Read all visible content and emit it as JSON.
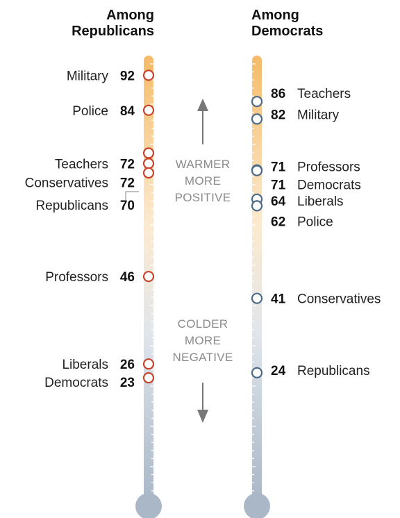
{
  "chart_data": {
    "type": "scatter",
    "subtype": "feeling-thermometer",
    "scale": [
      0,
      100
    ],
    "grid": false,
    "colors": {
      "warm": "#f4b860",
      "cool": "#a9b7c7",
      "republican_marker": "#c8432b",
      "democrat_marker": "#4a6a87",
      "arrow": "#777777"
    },
    "annotations": {
      "warm": [
        "WARMER",
        "MORE",
        "POSITIVE"
      ],
      "cold": [
        "COLDER",
        "MORE",
        "NEGATIVE"
      ]
    },
    "panels": [
      {
        "title": [
          "Among",
          "Republicans"
        ],
        "label_side": "left",
        "points": [
          {
            "label": "Military",
            "value": 92
          },
          {
            "label": "Police",
            "value": 84
          },
          {
            "label": "Teachers",
            "value": 72
          },
          {
            "label": "Conservatives",
            "value": 72
          },
          {
            "label": "Republicans",
            "value": 70
          },
          {
            "label": "Professors",
            "value": 46
          },
          {
            "label": "Liberals",
            "value": 26
          },
          {
            "label": "Democrats",
            "value": 23
          }
        ]
      },
      {
        "title": [
          "Among",
          "Democrats"
        ],
        "label_side": "right",
        "points": [
          {
            "label": "Teachers",
            "value": 86
          },
          {
            "label": "Military",
            "value": 82
          },
          {
            "label": "Professors",
            "value": 71
          },
          {
            "label": "Democrats",
            "value": 71
          },
          {
            "label": "Liberals",
            "value": 64
          },
          {
            "label": "Police",
            "value": 62
          },
          {
            "label": "Conservatives",
            "value": 41
          },
          {
            "label": "Republicans",
            "value": 24
          }
        ]
      }
    ]
  }
}
